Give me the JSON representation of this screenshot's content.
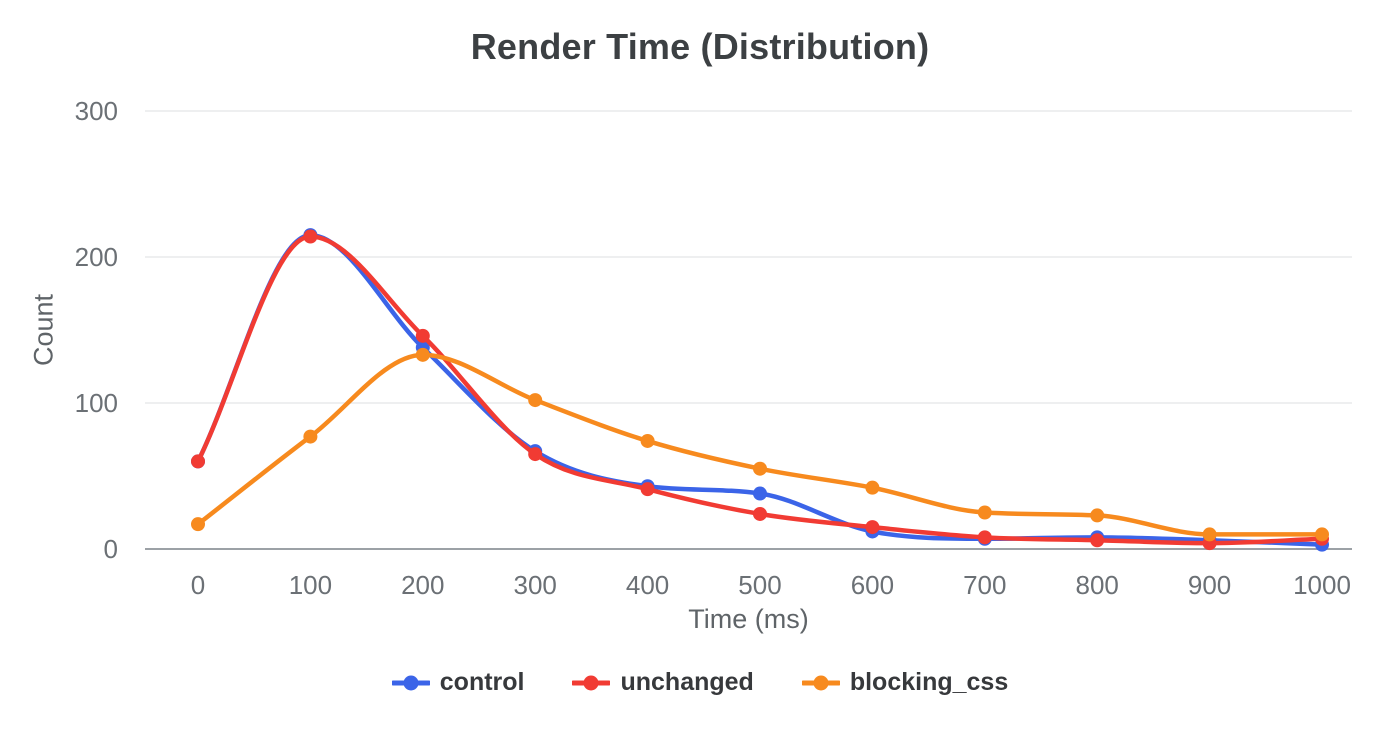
{
  "chart": {
    "title": "Render Time (Distribution)",
    "x_axis_label": "Time (ms)",
    "y_axis_label": "Count"
  },
  "chart_data": {
    "type": "line",
    "title": "Render Time (Distribution)",
    "xlabel": "Time (ms)",
    "ylabel": "Count",
    "x": [
      0,
      100,
      200,
      300,
      400,
      500,
      600,
      700,
      800,
      900,
      1000
    ],
    "series": [
      {
        "name": "control",
        "color": "#3B64E8",
        "values": [
          60,
          215,
          138,
          67,
          43,
          38,
          12,
          7,
          8,
          6,
          3
        ]
      },
      {
        "name": "unchanged",
        "color": "#F13B33",
        "values": [
          60,
          214,
          146,
          65,
          41,
          24,
          15,
          8,
          6,
          4,
          7
        ]
      },
      {
        "name": "blocking_css",
        "color": "#F78A1E",
        "values": [
          17,
          77,
          133,
          102,
          74,
          55,
          42,
          25,
          23,
          10,
          10
        ]
      }
    ],
    "ylim": [
      0,
      300
    ],
    "y_ticks": [
      0,
      100,
      200,
      300
    ],
    "grid": true,
    "legend_position": "bottom",
    "smooth": true,
    "point_style": "circle"
  },
  "colors": {
    "background": "#FFFFFF",
    "gridline": "#E9EAEB",
    "axis_line": "#9CA1A6",
    "tick_text": "#6B7075",
    "title_text": "#3C4043",
    "axis_label_text": "#5F6468",
    "legend_text": "#37393C"
  }
}
